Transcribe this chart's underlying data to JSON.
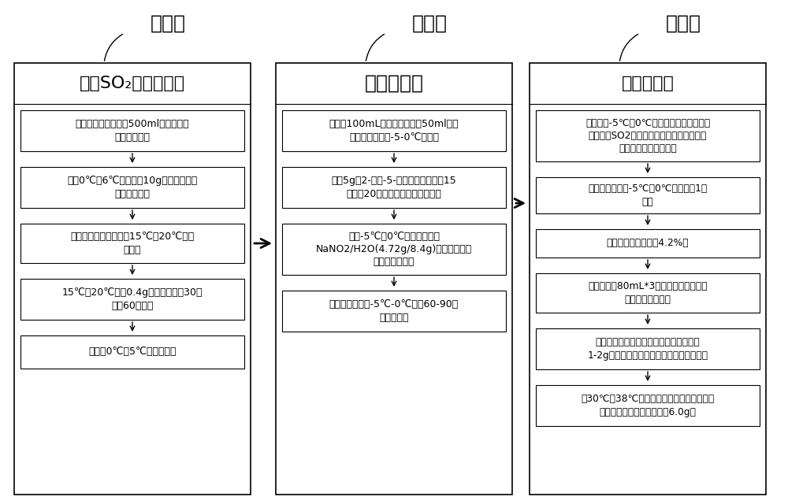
{
  "bg_color": "#ffffff",
  "box_border_color": "#000000",
  "text_color": "#000000",
  "step_labels": [
    "步骤一",
    "步骤二",
    "步骤三"
  ],
  "column_titles": [
    "制备SO₂水饱和溶液",
    "制备重氮盐",
    "制备磺酰氯"
  ],
  "col1_steps": [
    "将一定量的纯水加入500ml四口瓶，并\n进行冷却降温",
    "维持0℃至6℃缓慢滴加10g氯化亚砜，直\n至滴加完毕。",
    "滴加完毕后自然升温至15℃至20℃，并\n搅拌。",
    "15℃至20℃加入0.4g氯化亚铜搅拌30分\n钟至60分钟。",
    "冷却至0℃至5℃左右备用。"
  ],
  "col2_steps": [
    "在另一100mL四口瓶中，加入50ml浓盐\n酸，搅拌降温至-5-0℃左右。",
    "加入5g的2-氨基-5-溴三氟甲苯，搅拌15\n分钟至20分钟，得到白色悬浊液。",
    "维持-5℃至0℃左右缓慢滴加\nNaNO2/H2O(4.72g/8.4g)，放热，得到\n棕黄色悬浊液。",
    "滴加完毕后维持-5℃-0℃搅拌60-90分\n钟，备用。"
  ],
  "col3_steps": [
    "维持内温-5℃至0℃，将制备好的重氮盐缓\n慢加入到SO2饱和水溶液中，即步骤二所得\n溶液倒入至步骤一中。",
    "滴加完毕后维持-5℃至0℃左右搅拌1小\n时。",
    "取样检测，原料剩余4.2%。",
    "向体系加入80mL*3二氯甲烷，共萃取三\n次，合并有机相。",
    "有机相用饱和碳酸氢钠洗涤至中性，加入\n1-2g硫酸镁搅拌，干燥，过滤，得到滤液。",
    "在30℃至38℃温度内，滤液用水泵减压脱溶\n至不出液，得到棕红色液体6.0g。"
  ],
  "fig_width": 10.0,
  "fig_height": 6.4,
  "dpi": 100
}
